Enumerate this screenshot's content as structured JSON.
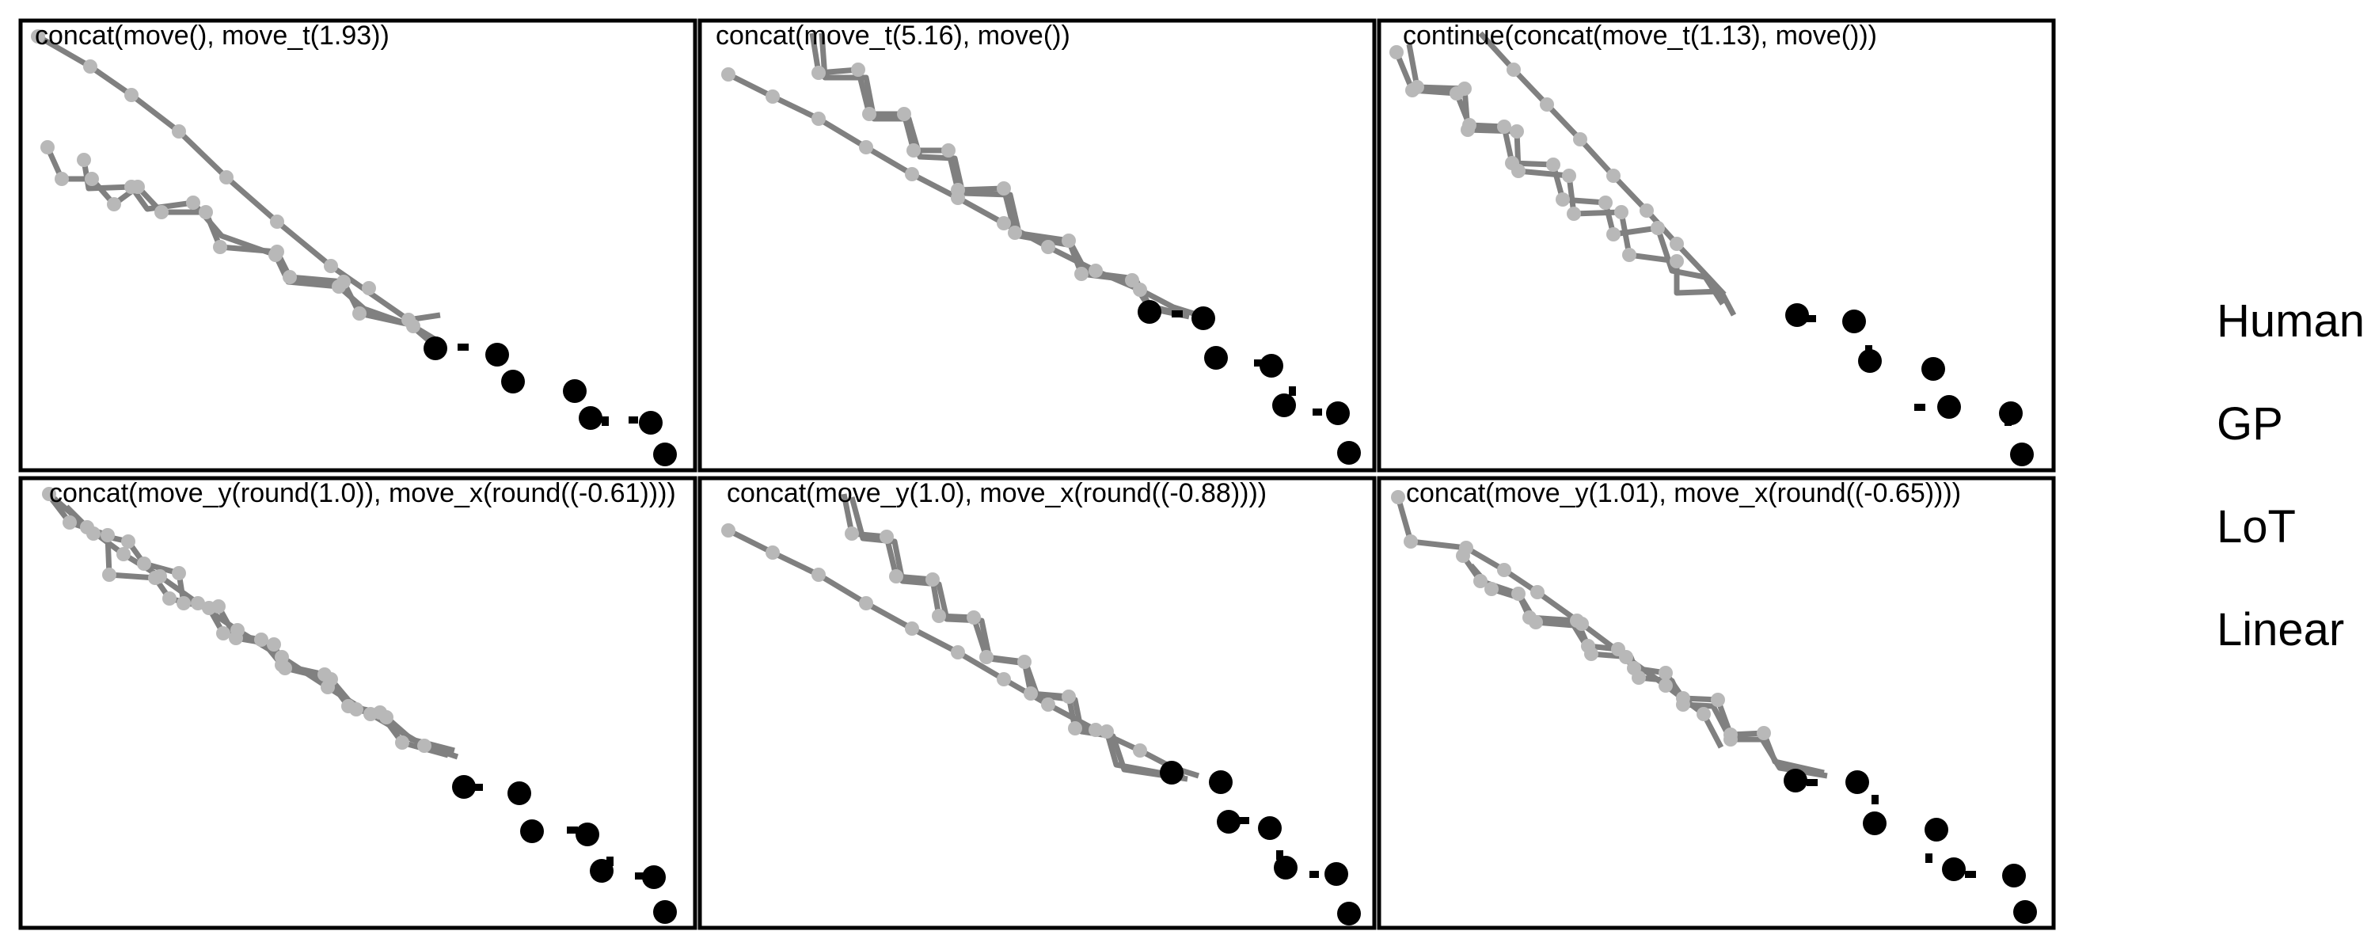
{
  "panels": [
    {
      "label": "concat(move(), move_t(1.93))"
    },
    {
      "label": "concat(move_t(5.16), move())"
    },
    {
      "label": "continue(concat(move_t(1.13), move()))"
    },
    {
      "label": "concat(move_y(round(1.0)), move_x(round((-0.61))))"
    },
    {
      "label": "concat(move_y(1.0), move_x(round((-0.88))))"
    },
    {
      "label": "concat(move_y(1.01), move_x(round((-0.65))))"
    }
  ],
  "legend": [
    "Human",
    "GP",
    "LoT",
    "Linear"
  ],
  "colors": {
    "observed_points": "#000000",
    "prediction_paths": "#808080",
    "prediction_markers": "#b8b8b8",
    "frame": "#000000"
  }
}
